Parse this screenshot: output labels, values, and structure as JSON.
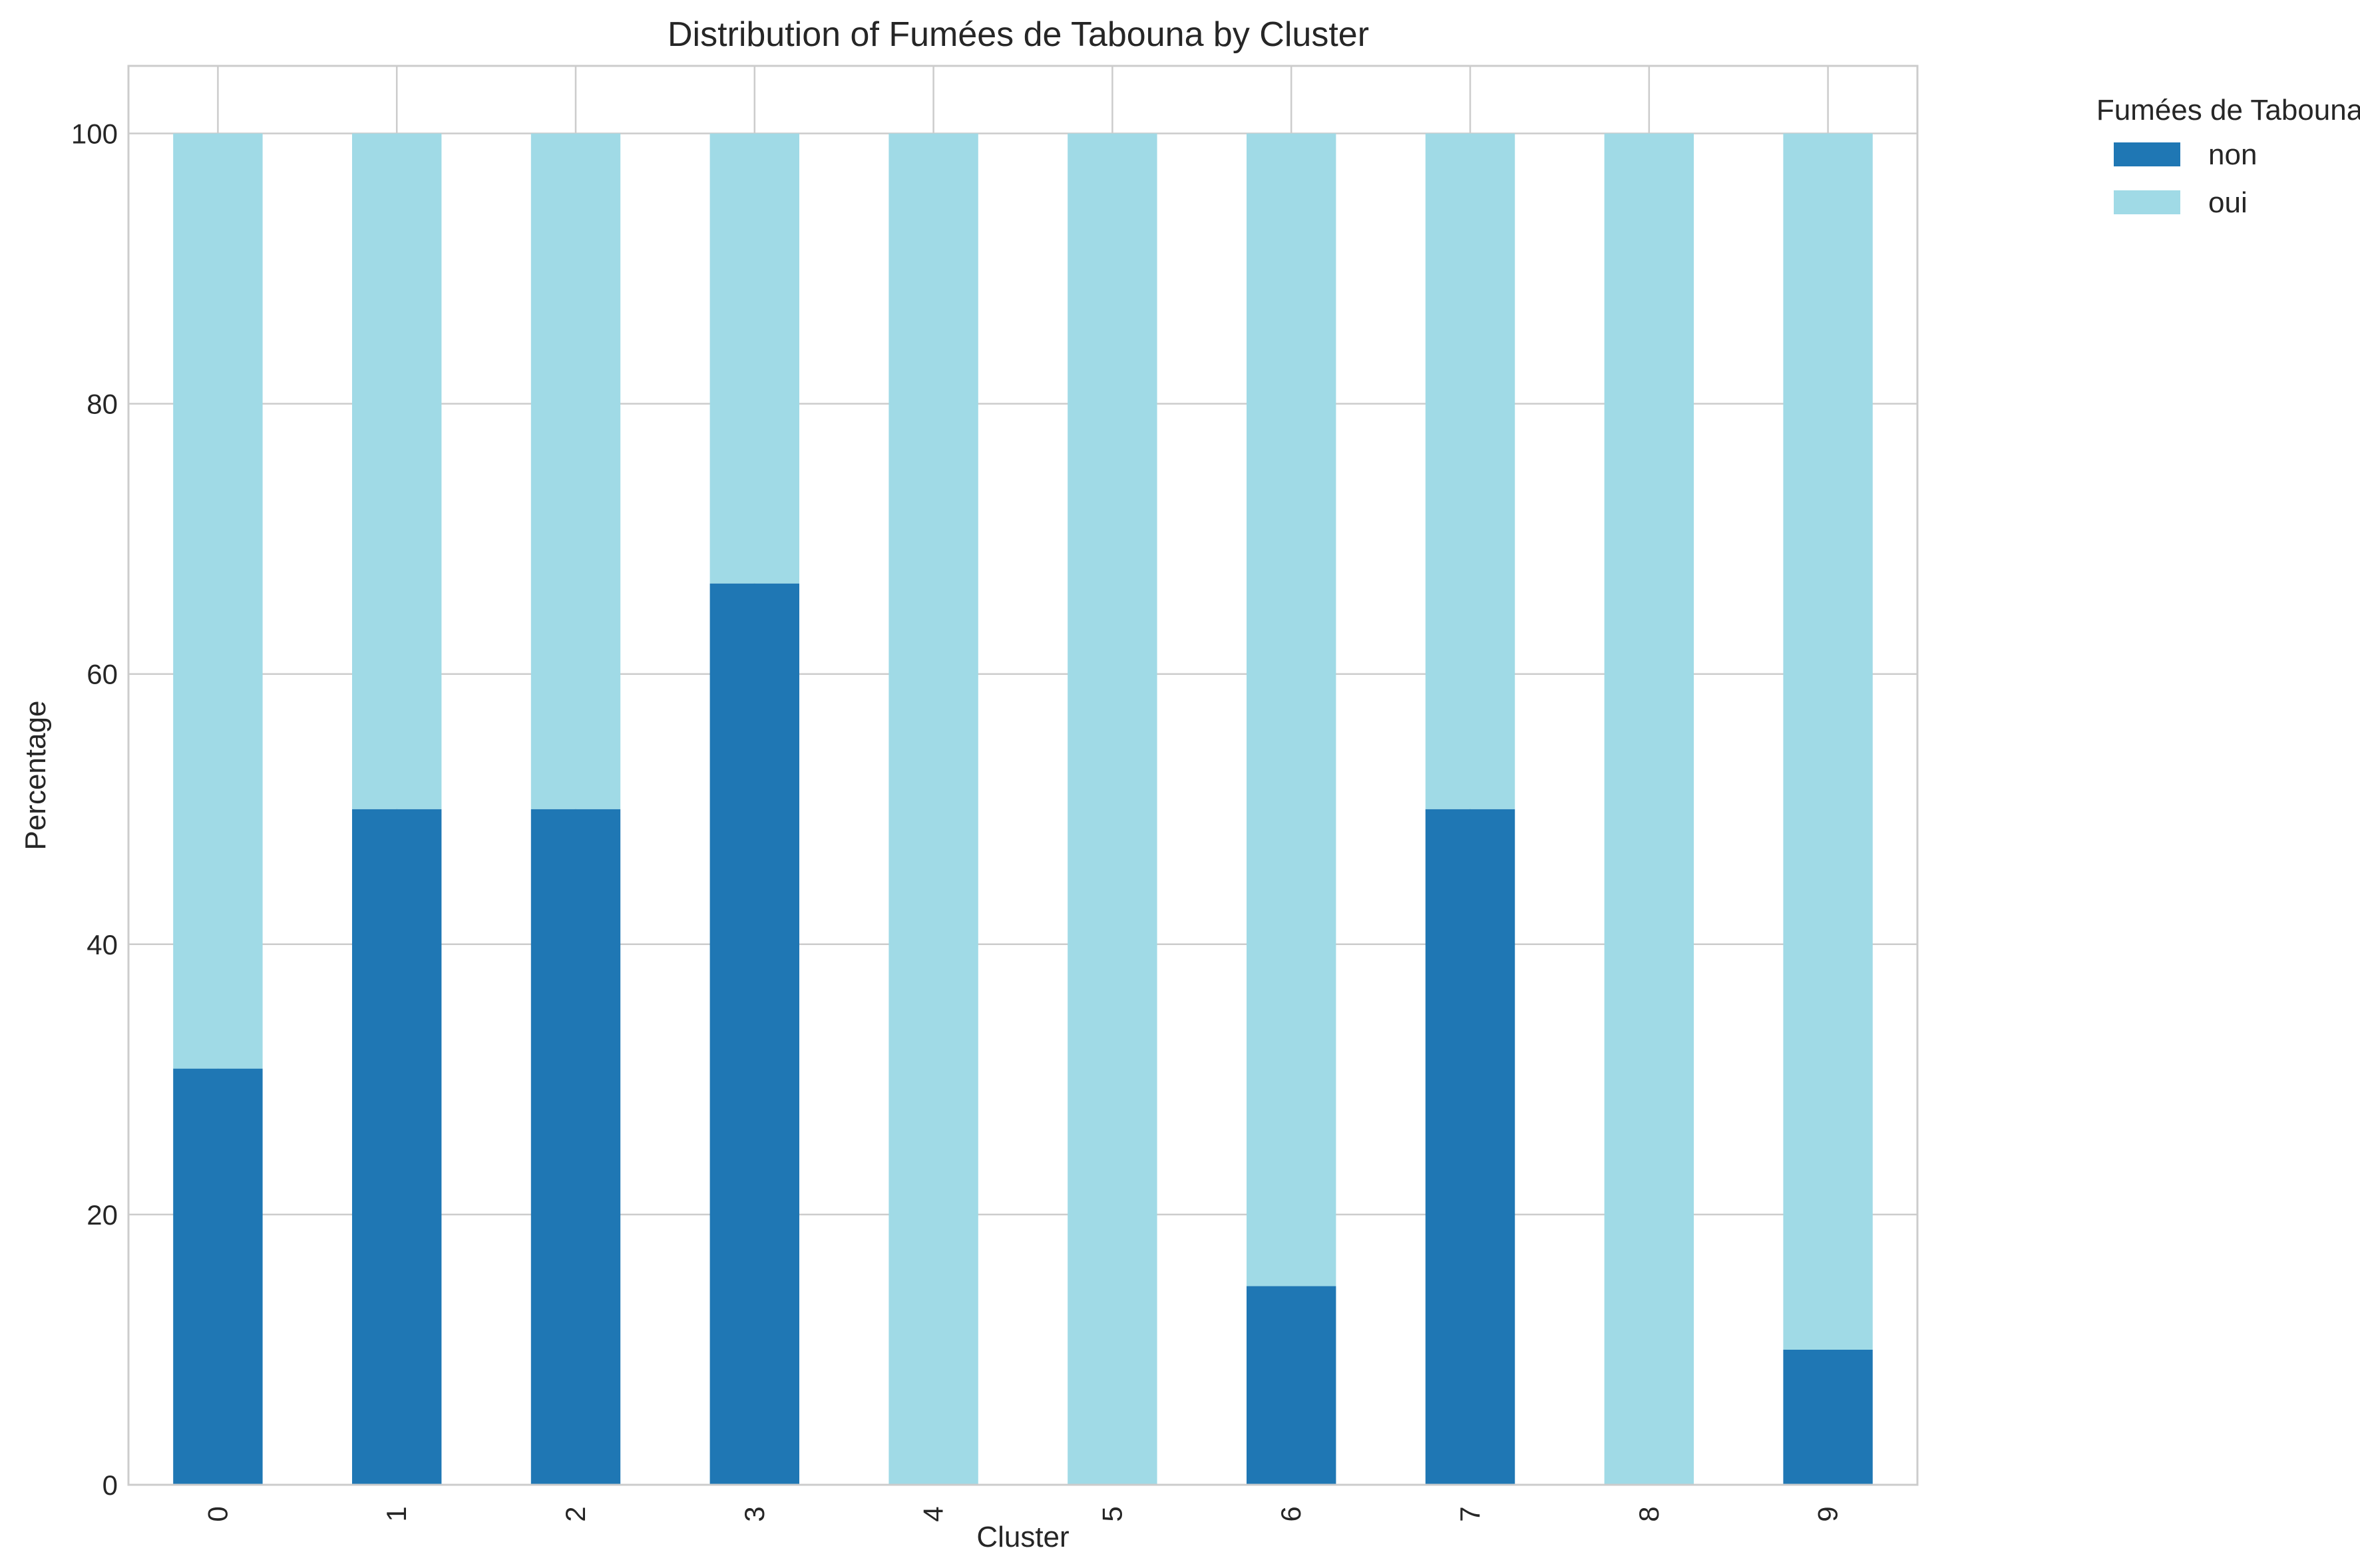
{
  "chart_data": {
    "type": "bar",
    "stacked": true,
    "title": "Distribution of Fumées de Tabouna by Cluster",
    "xlabel": "Cluster",
    "ylabel": "Percentage",
    "categories": [
      "0",
      "1",
      "2",
      "3",
      "4",
      "5",
      "6",
      "7",
      "8",
      "9"
    ],
    "series": [
      {
        "name": "non",
        "color": "#1f77b4",
        "values": [
          30.8,
          50.0,
          50.0,
          66.7,
          0.0,
          0.0,
          14.7,
          50.0,
          0.0,
          10.0
        ]
      },
      {
        "name": "oui",
        "color": "#a0dae6",
        "values": [
          69.2,
          50.0,
          50.0,
          33.3,
          100.0,
          100.0,
          85.3,
          50.0,
          100.0,
          90.0
        ]
      }
    ],
    "ylim": [
      0,
      105
    ],
    "yticks": [
      0,
      20,
      40,
      60,
      80,
      100
    ],
    "grid": true,
    "legend": {
      "title": "Fumées de Tabouna",
      "placement": "outside-top-right"
    }
  }
}
